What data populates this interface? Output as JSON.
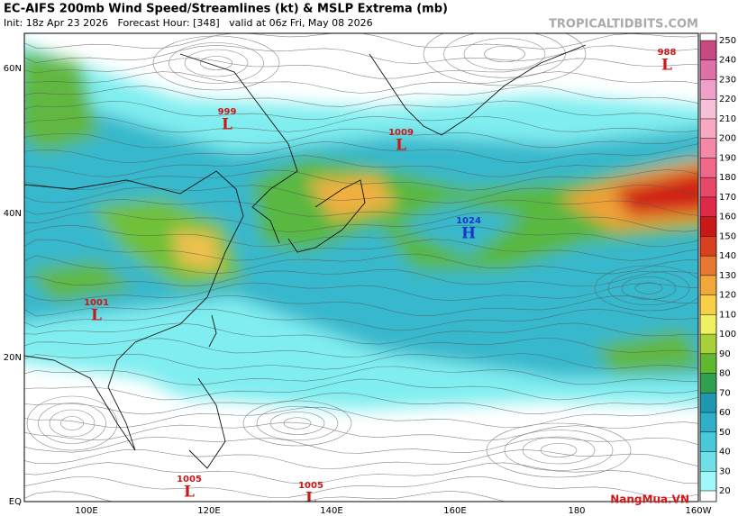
{
  "header": {
    "title": "EC-AIFS 200mb Wind Speed/Streamlines (kt) & MSLP Extrema (mb)",
    "subtitle": "Init: 18z Apr 23 2026   Forecast Hour: [348]   valid at 06z Fri, May 08 2026",
    "watermark": "TROPICALTIDBITS.COM"
  },
  "map": {
    "lat_labels": [
      "60N",
      "40N",
      "20N",
      "EQ"
    ],
    "lon_labels": [
      "100E",
      "120E",
      "140E",
      "160E",
      "180",
      "160W"
    ],
    "systems": [
      {
        "pressure": 999,
        "symbol": "L"
      },
      {
        "pressure": 1009,
        "symbol": "L"
      },
      {
        "pressure": 1024,
        "symbol": "H"
      },
      {
        "pressure": 1001,
        "symbol": "L"
      },
      {
        "pressure": 1005,
        "symbol": "L"
      },
      {
        "pressure": 1005,
        "symbol": "L"
      },
      {
        "pressure": 988,
        "symbol": "L"
      }
    ]
  },
  "colorbar": {
    "ticks": [
      20,
      30,
      40,
      50,
      60,
      70,
      80,
      90,
      100,
      110,
      120,
      130,
      140,
      150,
      160,
      170,
      180,
      190,
      200,
      210,
      220,
      230,
      240,
      250
    ],
    "colors": [
      "#a0f8f8",
      "#70e0e8",
      "#48c8d8",
      "#30b0c8",
      "#2098b0",
      "#30a050",
      "#60b830",
      "#a8d038",
      "#f0f060",
      "#f8d048",
      "#f0a838",
      "#e87830",
      "#d84020",
      "#c81818",
      "#e02848",
      "#e84868",
      "#f06888",
      "#f488a8",
      "#f8a8c0",
      "#f8c0d8",
      "#f0a0c8",
      "#e070a8",
      "#c84880"
    ]
  },
  "footer": {
    "logo": "NangMua.VN"
  }
}
